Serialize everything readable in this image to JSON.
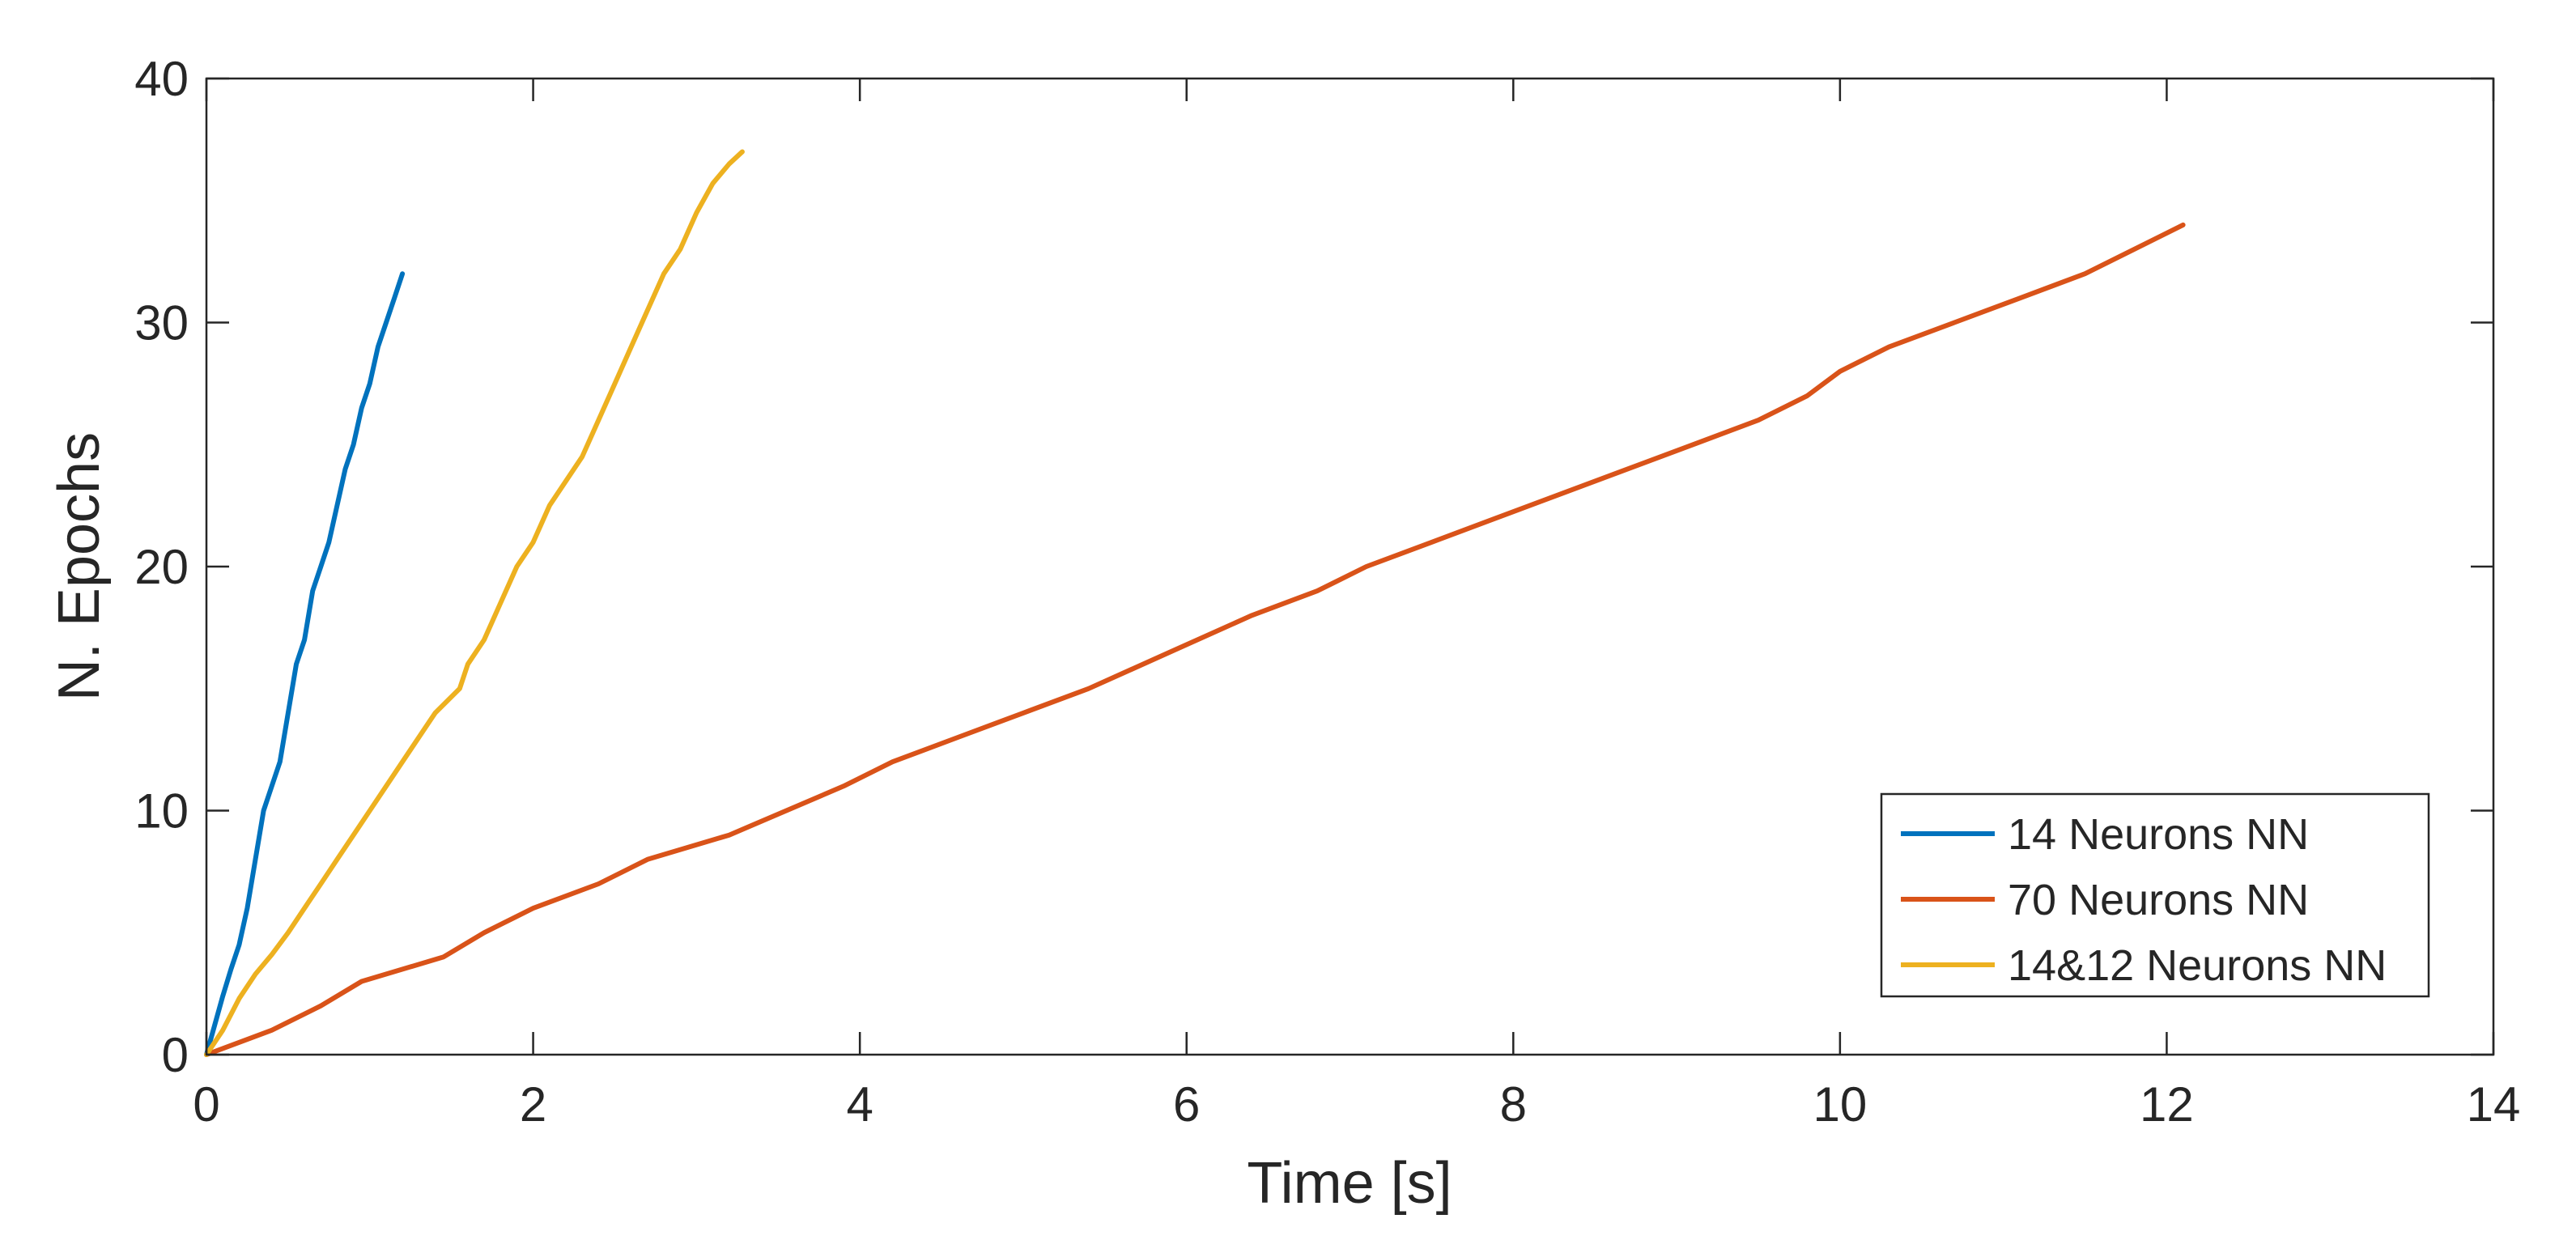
{
  "chart_data": {
    "type": "line",
    "title": "",
    "xlabel": "Time [s]",
    "ylabel": "N. Epochs",
    "xlim": [
      0,
      14
    ],
    "ylim": [
      0,
      40
    ],
    "xticks": [
      0,
      2,
      4,
      6,
      8,
      10,
      12,
      14
    ],
    "yticks": [
      0,
      10,
      20,
      30,
      40
    ],
    "xtick_labels": [
      "0",
      "2",
      "4",
      "6",
      "8",
      "10",
      "12",
      "14"
    ],
    "ytick_labels": [
      "0",
      "10",
      "20",
      "30",
      "40"
    ],
    "grid": false,
    "legend_position": "bottom-right",
    "series": [
      {
        "name": "14 Neurons NN",
        "color": "#0072BD",
        "x": [
          0,
          0.05,
          0.1,
          0.15,
          0.2,
          0.25,
          0.3,
          0.35,
          0.4,
          0.45,
          0.5,
          0.55,
          0.6,
          0.65,
          0.7,
          0.75,
          0.8,
          0.85,
          0.9,
          0.95,
          1.0,
          1.05,
          1.1,
          1.15,
          1.2
        ],
        "y": [
          0,
          1.2,
          2.4,
          3.5,
          4.5,
          6,
          8,
          10,
          11,
          12,
          14,
          16,
          17,
          19,
          20,
          21,
          22.5,
          24,
          25,
          26.5,
          27.5,
          29,
          30,
          31,
          32
        ]
      },
      {
        "name": "70 Neurons NN",
        "color": "#D95319",
        "x": [
          0,
          0.4,
          0.7,
          0.95,
          1.45,
          1.7,
          2.0,
          2.4,
          2.7,
          3.2,
          3.9,
          4.2,
          4.6,
          5.0,
          5.4,
          5.9,
          6.4,
          6.8,
          7.1,
          7.5,
          7.9,
          8.3,
          8.7,
          9.1,
          9.5,
          9.8,
          10.0,
          10.3,
          10.7,
          11.1,
          11.5,
          11.8,
          12.1
        ],
        "y": [
          0,
          1,
          2,
          3,
          4,
          5,
          6,
          7,
          8,
          9,
          11,
          12,
          13,
          14,
          15,
          16.5,
          18,
          19,
          20,
          21,
          22,
          23,
          24,
          25,
          26,
          27,
          28,
          29,
          30,
          31,
          32,
          33,
          34
        ]
      },
      {
        "name": "14&12 Neurons NN",
        "color": "#EDB120",
        "x": [
          0,
          0.1,
          0.2,
          0.3,
          0.4,
          0.5,
          0.6,
          0.7,
          0.8,
          0.9,
          1.0,
          1.1,
          1.2,
          1.4,
          1.55,
          1.6,
          1.7,
          1.8,
          1.9,
          2.0,
          2.1,
          2.3,
          2.4,
          2.5,
          2.6,
          2.7,
          2.8,
          2.9,
          3.0,
          3.1,
          3.2,
          3.28
        ],
        "y": [
          0,
          1,
          2.3,
          3.3,
          4.1,
          5,
          6,
          7,
          8,
          9,
          10,
          11,
          12,
          14,
          15,
          16,
          17,
          18.5,
          20,
          21,
          22.5,
          24.5,
          26,
          27.5,
          29,
          30.5,
          32,
          33,
          34.5,
          35.7,
          36.5,
          37
        ]
      }
    ]
  }
}
